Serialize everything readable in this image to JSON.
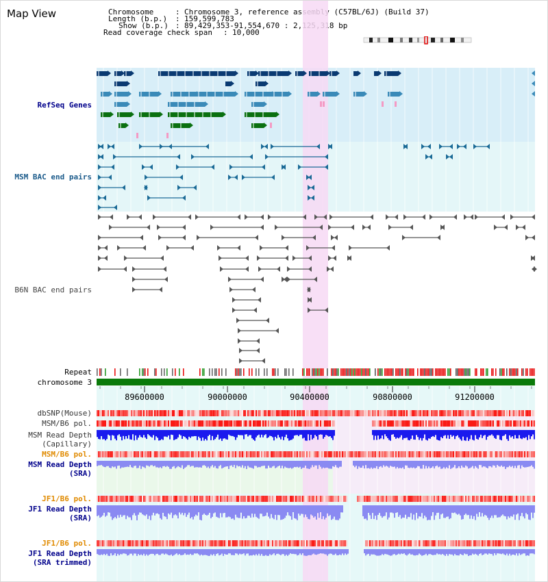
{
  "page": {
    "title": "Map View"
  },
  "info": {
    "chromosome_key": "Chromosome",
    "chromosome_val": "Chromosome 3, reference assembly (C57BL/6J) (Build 37)",
    "length_key": "Length (b.p.)",
    "length_val": "159,599,783",
    "show_key": "Show (b.p.)",
    "show_val": "89,429,353-91,554,670 : 2,125,318 bp",
    "coverage_key": "Read coverage check span",
    "coverage_val": "10,000",
    "sep": ":"
  },
  "tracks": {
    "refseq_genes": "RefSeq Genes",
    "msm_bac": "MSM BAC end pairs",
    "b6n_bac": "B6N BAC end pairs",
    "repeat": "Repeat",
    "chromosome": "chromosome 3",
    "dbsnp": "dbSNP(Mouse)",
    "msm_b6_pol_1": "MSM/B6 pol.",
    "msm_depth_cap_1": "MSM Read Depth",
    "msm_depth_cap_2": "(Capillary)",
    "msm_b6_pol_2": "MSM/B6 pol.",
    "msm_depth_sra_1": "MSM Read Depth",
    "msm_depth_sra_2": "(SRA)",
    "jf1_b6_pol_1": "JF1/B6 pol.",
    "jf1_depth_1": "JF1 Read Depth",
    "jf1_depth_2": "(SRA)",
    "jf1_b6_pol_2": "JF1/B6 pol.",
    "jf1_trim_1": "JF1 Read Depth",
    "jf1_trim_2": "(SRA trimmed)"
  },
  "axis": {
    "ticks": [
      "89600000",
      "90000000",
      "90400000",
      "90800000",
      "91200000"
    ]
  },
  "colors": {
    "gene_dark": "#0a3a72",
    "gene_mid": "#3a8ab8",
    "gene_green": "#0a7010",
    "msm_line": "#1a6a96",
    "b6n_line": "#555555",
    "highlight": "#f7d9f4",
    "chromosome_bar": "#0a7a0a",
    "depth_blue": "#1a1aee",
    "depth_light": "#8a8af2",
    "label_blue": "#00008b",
    "label_teal": "#1a5a8a",
    "label_orange": "#e08a00"
  }
}
